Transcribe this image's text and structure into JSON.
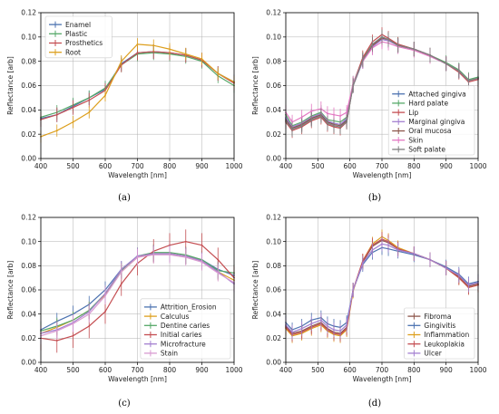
{
  "chart_data": [
    {
      "type": "line",
      "panel": "(a)",
      "xlabel": "Wavelength [nm]",
      "ylabel": "Reflectance [arb]",
      "xlim": [
        400,
        1000
      ],
      "ylim": [
        0,
        0.12
      ],
      "xticks": [
        400,
        500,
        600,
        700,
        800,
        900,
        1000
      ],
      "yticks": [
        0.0,
        0.02,
        0.04,
        0.06,
        0.08,
        0.1,
        0.12
      ],
      "grid": true,
      "legend_position": "top-left",
      "x": [
        400,
        450,
        500,
        550,
        600,
        650,
        700,
        750,
        800,
        850,
        900,
        950,
        1000
      ],
      "series": [
        {
          "name": "Enamel",
          "color": "#4c72b0",
          "values": [
            0.033,
            0.036,
            0.043,
            0.05,
            0.057,
            0.078,
            0.087,
            0.088,
            0.087,
            0.085,
            0.081,
            0.07,
            0.063
          ],
          "err": 0.006
        },
        {
          "name": "Plastic",
          "color": "#55a868",
          "values": [
            0.034,
            0.038,
            0.044,
            0.05,
            0.058,
            0.077,
            0.086,
            0.087,
            0.086,
            0.084,
            0.08,
            0.068,
            0.06
          ],
          "err": 0.006
        },
        {
          "name": "Prosthetics",
          "color": "#c44e52",
          "values": [
            0.032,
            0.036,
            0.042,
            0.048,
            0.056,
            0.077,
            0.087,
            0.088,
            0.087,
            0.085,
            0.081,
            0.07,
            0.062
          ],
          "err": 0.006
        },
        {
          "name": "Root",
          "color": "#dd9f1d",
          "values": [
            0.018,
            0.023,
            0.03,
            0.038,
            0.052,
            0.08,
            0.094,
            0.093,
            0.09,
            0.086,
            0.082,
            0.07,
            0.063
          ],
          "err": 0.005
        }
      ],
      "caption": "(a)"
    },
    {
      "type": "line",
      "panel": "(b)",
      "xlabel": "Wavelength [nm]",
      "ylabel": "Reflectance [arb]",
      "xlim": [
        400,
        1000
      ],
      "ylim": [
        0,
        0.12
      ],
      "xticks": [
        400,
        500,
        600,
        700,
        800,
        900,
        1000
      ],
      "yticks": [
        0.0,
        0.02,
        0.04,
        0.06,
        0.08,
        0.1,
        0.12
      ],
      "grid": true,
      "legend_position": "bottom-right",
      "x": [
        400,
        420,
        450,
        480,
        510,
        530,
        550,
        570,
        590,
        610,
        640,
        670,
        700,
        720,
        750,
        800,
        850,
        900,
        940,
        970,
        1000
      ],
      "series": [
        {
          "name": "Attached gingiva",
          "color": "#4c72b0",
          "values": [
            0.033,
            0.025,
            0.028,
            0.033,
            0.036,
            0.03,
            0.029,
            0.028,
            0.032,
            0.06,
            0.08,
            0.092,
            0.098,
            0.097,
            0.093,
            0.09,
            0.085,
            0.078,
            0.072,
            0.064,
            0.066
          ],
          "err": 0.006
        },
        {
          "name": "Hard palate",
          "color": "#55a868",
          "values": [
            0.036,
            0.027,
            0.03,
            0.035,
            0.038,
            0.032,
            0.031,
            0.03,
            0.034,
            0.062,
            0.082,
            0.094,
            0.1,
            0.098,
            0.094,
            0.09,
            0.085,
            0.079,
            0.073,
            0.065,
            0.067
          ],
          "err": 0.006
        },
        {
          "name": "Lip",
          "color": "#c44e52",
          "values": [
            0.03,
            0.023,
            0.026,
            0.031,
            0.034,
            0.028,
            0.026,
            0.025,
            0.03,
            0.061,
            0.083,
            0.096,
            0.102,
            0.099,
            0.094,
            0.09,
            0.085,
            0.078,
            0.071,
            0.063,
            0.065
          ],
          "err": 0.006
        },
        {
          "name": "Marginal gingiva",
          "color": "#a37fd0",
          "values": [
            0.034,
            0.026,
            0.029,
            0.034,
            0.037,
            0.031,
            0.029,
            0.028,
            0.033,
            0.06,
            0.08,
            0.092,
            0.098,
            0.097,
            0.093,
            0.09,
            0.085,
            0.078,
            0.072,
            0.064,
            0.066
          ],
          "err": 0.006
        },
        {
          "name": "Oral mucosa",
          "color": "#8c564b",
          "values": [
            0.032,
            0.025,
            0.028,
            0.033,
            0.036,
            0.03,
            0.028,
            0.027,
            0.031,
            0.06,
            0.081,
            0.093,
            0.099,
            0.098,
            0.093,
            0.09,
            0.085,
            0.078,
            0.072,
            0.064,
            0.066
          ],
          "err": 0.006
        },
        {
          "name": "Skin",
          "color": "#e377c2",
          "values": [
            0.038,
            0.03,
            0.034,
            0.039,
            0.041,
            0.037,
            0.036,
            0.035,
            0.038,
            0.062,
            0.08,
            0.091,
            0.096,
            0.095,
            0.092,
            0.089,
            0.084,
            0.078,
            0.072,
            0.064,
            0.066
          ],
          "err": 0.006
        },
        {
          "name": "Soft palate",
          "color": "#7f7f7f",
          "values": [
            0.031,
            0.024,
            0.027,
            0.032,
            0.035,
            0.029,
            0.027,
            0.026,
            0.03,
            0.06,
            0.081,
            0.094,
            0.1,
            0.098,
            0.093,
            0.09,
            0.085,
            0.078,
            0.072,
            0.064,
            0.066
          ],
          "err": 0.006
        }
      ],
      "caption": "(b)"
    },
    {
      "type": "line",
      "panel": "(c)",
      "xlabel": "Wavelength [nm]",
      "ylabel": "Reflectance [arb]",
      "xlim": [
        400,
        1000
      ],
      "ylim": [
        0,
        0.12
      ],
      "xticks": [
        400,
        500,
        600,
        700,
        800,
        900,
        1000
      ],
      "yticks": [
        0.0,
        0.02,
        0.04,
        0.06,
        0.08,
        0.1,
        0.12
      ],
      "grid": true,
      "legend_position": "bottom-right",
      "x": [
        400,
        450,
        500,
        550,
        600,
        650,
        700,
        750,
        800,
        850,
        900,
        950,
        1000
      ],
      "series": [
        {
          "name": "Attrition_Erosion",
          "color": "#4c72b0",
          "values": [
            0.027,
            0.034,
            0.04,
            0.048,
            0.06,
            0.077,
            0.088,
            0.09,
            0.09,
            0.088,
            0.085,
            0.077,
            0.072
          ],
          "err": 0.007
        },
        {
          "name": "Calculus",
          "color": "#dd9f1d",
          "values": [
            0.024,
            0.029,
            0.035,
            0.043,
            0.056,
            0.075,
            0.087,
            0.09,
            0.09,
            0.088,
            0.084,
            0.075,
            0.068
          ],
          "err": 0.007
        },
        {
          "name": "Dentine caries",
          "color": "#55a868",
          "values": [
            0.026,
            0.03,
            0.035,
            0.043,
            0.057,
            0.076,
            0.088,
            0.091,
            0.091,
            0.089,
            0.085,
            0.076,
            0.074
          ],
          "err": 0.007
        },
        {
          "name": "Initial caries",
          "color": "#c44e52",
          "values": [
            0.02,
            0.018,
            0.022,
            0.03,
            0.042,
            0.065,
            0.082,
            0.092,
            0.097,
            0.1,
            0.097,
            0.085,
            0.07
          ],
          "err": 0.01
        },
        {
          "name": "Microfracture",
          "color": "#a37fd0",
          "values": [
            0.024,
            0.027,
            0.033,
            0.042,
            0.057,
            0.077,
            0.088,
            0.09,
            0.09,
            0.088,
            0.084,
            0.075,
            0.065
          ],
          "err": 0.007
        },
        {
          "name": "Stain",
          "color": "#d99ad1",
          "values": [
            0.022,
            0.026,
            0.032,
            0.04,
            0.055,
            0.075,
            0.087,
            0.089,
            0.089,
            0.087,
            0.083,
            0.074,
            0.066
          ],
          "err": 0.007
        }
      ],
      "caption": "(c)"
    },
    {
      "type": "line",
      "panel": "(d)",
      "xlabel": "Wavelength [nm]",
      "ylabel": "Reflectance [arb]",
      "xlim": [
        400,
        1000
      ],
      "ylim": [
        0,
        0.12
      ],
      "xticks": [
        400,
        500,
        600,
        700,
        800,
        900,
        1000
      ],
      "yticks": [
        0.0,
        0.02,
        0.04,
        0.06,
        0.08,
        0.1,
        0.12
      ],
      "grid": true,
      "legend_position": "bottom-right",
      "x": [
        400,
        420,
        450,
        480,
        510,
        530,
        550,
        570,
        590,
        610,
        640,
        670,
        700,
        720,
        750,
        800,
        850,
        900,
        940,
        970,
        1000
      ],
      "series": [
        {
          "name": "Fibroma",
          "color": "#8c564b",
          "values": [
            0.03,
            0.024,
            0.026,
            0.03,
            0.033,
            0.028,
            0.025,
            0.024,
            0.029,
            0.06,
            0.083,
            0.096,
            0.101,
            0.099,
            0.094,
            0.09,
            0.085,
            0.078,
            0.071,
            0.063,
            0.065
          ],
          "err": 0.006
        },
        {
          "name": "Gingivitis",
          "color": "#4c72b0",
          "values": [
            0.033,
            0.027,
            0.03,
            0.035,
            0.037,
            0.032,
            0.03,
            0.029,
            0.033,
            0.06,
            0.081,
            0.091,
            0.095,
            0.094,
            0.092,
            0.089,
            0.085,
            0.079,
            0.073,
            0.065,
            0.067
          ],
          "err": 0.006
        },
        {
          "name": "Inflammation",
          "color": "#dd9f1d",
          "values": [
            0.028,
            0.022,
            0.024,
            0.028,
            0.031,
            0.026,
            0.023,
            0.022,
            0.027,
            0.059,
            0.084,
            0.098,
            0.104,
            0.101,
            0.095,
            0.09,
            0.085,
            0.078,
            0.07,
            0.062,
            0.064
          ],
          "err": 0.006
        },
        {
          "name": "Leukoplakia",
          "color": "#c44e52",
          "values": [
            0.029,
            0.023,
            0.025,
            0.029,
            0.032,
            0.027,
            0.024,
            0.023,
            0.028,
            0.06,
            0.084,
            0.097,
            0.102,
            0.1,
            0.094,
            0.09,
            0.085,
            0.078,
            0.07,
            0.062,
            0.064
          ],
          "err": 0.006
        },
        {
          "name": "Ulcer",
          "color": "#a37fd0",
          "values": [
            0.031,
            0.025,
            0.028,
            0.032,
            0.035,
            0.03,
            0.027,
            0.026,
            0.031,
            0.06,
            0.082,
            0.093,
            0.098,
            0.097,
            0.093,
            0.09,
            0.085,
            0.078,
            0.072,
            0.064,
            0.066
          ],
          "err": 0.006
        }
      ],
      "caption": "(d)"
    }
  ]
}
